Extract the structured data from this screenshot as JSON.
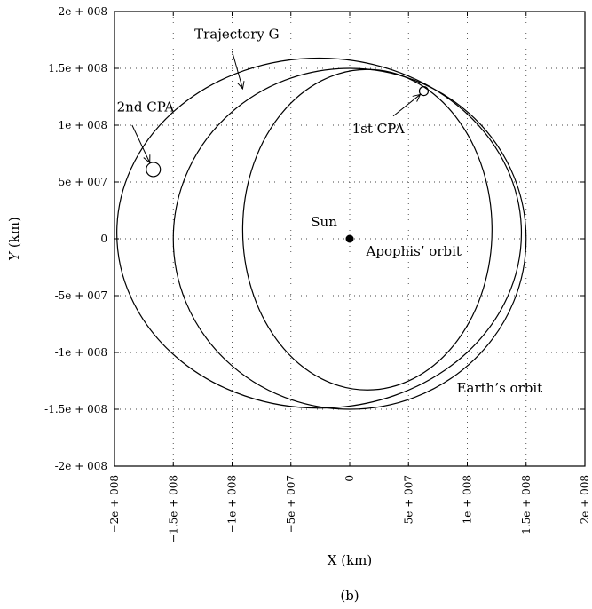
{
  "chart_data": {
    "type": "line",
    "title": "",
    "subtitle": "(b)",
    "xlabel": "X (km)",
    "ylabel": "Y (km)",
    "xlim": [
      -200000000,
      200000000
    ],
    "ylim": [
      -200000000,
      200000000
    ],
    "grid": true,
    "x_ticks": [
      {
        "value": -200000000,
        "label": "−2e + 008"
      },
      {
        "value": -150000000,
        "label": "−1.5e + 008"
      },
      {
        "value": -100000000,
        "label": "−1e + 008"
      },
      {
        "value": -50000000,
        "label": "−5e + 007"
      },
      {
        "value": 0,
        "label": "0"
      },
      {
        "value": 50000000,
        "label": "5e + 007"
      },
      {
        "value": 100000000,
        "label": "1e + 008"
      },
      {
        "value": 150000000,
        "label": "1.5e + 008"
      },
      {
        "value": 200000000,
        "label": "2e + 008"
      }
    ],
    "y_ticks": [
      {
        "value": 200000000,
        "label": "2e + 008"
      },
      {
        "value": 150000000,
        "label": "1.5e + 008"
      },
      {
        "value": 100000000,
        "label": "1e + 008"
      },
      {
        "value": 50000000,
        "label": "5e + 007"
      },
      {
        "value": 0,
        "label": "0"
      },
      {
        "value": -50000000,
        "label": "-5e + 007"
      },
      {
        "value": -100000000,
        "label": "-1e + 008"
      },
      {
        "value": -150000000,
        "label": "-1.5e + 008"
      },
      {
        "value": -200000000,
        "label": "-2e + 008"
      }
    ],
    "series": [
      {
        "name": "Earth’s orbit",
        "shape": "ellipse",
        "cx": 0,
        "cy": 0,
        "rx": 150000000,
        "ry": 150000000
      },
      {
        "name": "Apophis’ orbit",
        "shape": "ellipse",
        "cx": 15000000,
        "cy": 8000000,
        "rx": 106000000,
        "ry": 141000000
      },
      {
        "name": "Trajectory G",
        "shape": "ellipse",
        "cx": -26000000,
        "cy": 5000000,
        "rx": 172000000,
        "ry": 154000000
      }
    ],
    "points": [
      {
        "name": "Sun",
        "x": 0,
        "y": 0
      },
      {
        "name": "1st CPA",
        "x": 63000000,
        "y": 130000000
      },
      {
        "name": "2nd CPA",
        "x": -167000000,
        "y": 61000000
      }
    ],
    "annotations": [
      {
        "text": "Sun",
        "x": -33000000,
        "y": 11000000
      },
      {
        "text": "Apophis’ orbit",
        "x": 14000000,
        "y": -15000000
      },
      {
        "text": "Earth’s orbit",
        "x": 91000000,
        "y": -135000000
      },
      {
        "text": "Trajectory G",
        "x": -132000000,
        "y": 176000000
      },
      {
        "text": "1st CPA",
        "x": 2000000,
        "y": 93000000
      },
      {
        "text": "2nd CPA",
        "x": -198000000,
        "y": 112000000
      }
    ],
    "arrows": [
      {
        "for": "Trajectory G",
        "from": [
          -100000000,
          165000000
        ],
        "to": [
          -91000000,
          132000000
        ]
      },
      {
        "for": "1st CPA",
        "from": [
          37000000,
          108000000
        ],
        "to": [
          60000000,
          127000000
        ]
      },
      {
        "for": "2nd CPA",
        "from": [
          -185000000,
          100000000
        ],
        "to": [
          -170000000,
          67000000
        ]
      }
    ]
  }
}
